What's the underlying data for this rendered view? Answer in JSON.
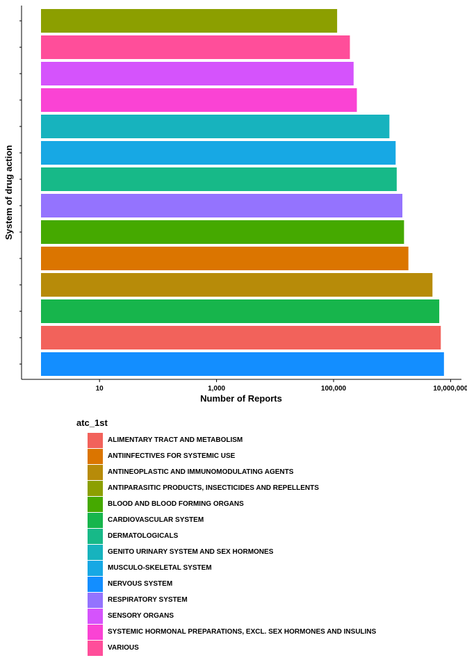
{
  "chart_data": {
    "type": "bar",
    "orientation": "horizontal",
    "xlabel": "Number of Reports",
    "ylabel": "System of drug action",
    "x_scale": "log10",
    "x_ticks": [
      10,
      1000,
      100000,
      10000000
    ],
    "x_tick_labels": [
      "10",
      "1,000",
      "100,000",
      "10,000,000"
    ],
    "xlim": [
      1,
      10000000
    ],
    "grid": false,
    "legend_title": "atc_1st",
    "legend_position": "bottom",
    "categories": [
      "ANTIPARASITIC PRODUCTS, INSECTICIDES AND REPELLENTS",
      "VARIOUS",
      "SENSORY ORGANS",
      "SYSTEMIC HORMONAL PREPARATIONS, EXCL. SEX HORMONES AND INSULINS",
      "GENITO URINARY SYSTEM AND SEX HORMONES",
      "MUSCULO-SKELETAL SYSTEM",
      "DERMATOLOGICALS",
      "RESPIRATORY SYSTEM",
      "BLOOD AND BLOOD FORMING ORGANS",
      "ANTIINFECTIVES FOR SYSTEMIC USE",
      "ANTINEOPLASTIC AND IMMUNOMODULATING AGENTS",
      "CARDIOVASCULAR SYSTEM",
      "ALIMENTARY TRACT AND METABOLISM",
      "NERVOUS SYSTEM"
    ],
    "values": [
      115000,
      190000,
      220000,
      250000,
      900000,
      1150000,
      1200000,
      1500000,
      1600000,
      1900000,
      4900000,
      6400000,
      6800000,
      7700000
    ],
    "colors": [
      "#8C9F00",
      "#FF4E9A",
      "#D553FC",
      "#FA43D4",
      "#17B3BE",
      "#17A8E4",
      "#17B988",
      "#9473FE",
      "#45A900",
      "#DB7500",
      "#B78B09",
      "#17B54C",
      "#F2625B",
      "#138EFF"
    ],
    "legend": [
      {
        "label": "ALIMENTARY TRACT AND METABOLISM",
        "color": "#F2625B"
      },
      {
        "label": "ANTIINFECTIVES FOR SYSTEMIC USE",
        "color": "#DB7500"
      },
      {
        "label": "ANTINEOPLASTIC AND IMMUNOMODULATING AGENTS",
        "color": "#B78B09"
      },
      {
        "label": "ANTIPARASITIC PRODUCTS, INSECTICIDES AND REPELLENTS",
        "color": "#8C9F00"
      },
      {
        "label": "BLOOD AND BLOOD FORMING ORGANS",
        "color": "#45A900"
      },
      {
        "label": "CARDIOVASCULAR SYSTEM",
        "color": "#17B54C"
      },
      {
        "label": "DERMATOLOGICALS",
        "color": "#17B988"
      },
      {
        "label": "GENITO URINARY SYSTEM AND SEX HORMONES",
        "color": "#17B3BE"
      },
      {
        "label": "MUSCULO-SKELETAL SYSTEM",
        "color": "#17A8E4"
      },
      {
        "label": "NERVOUS SYSTEM",
        "color": "#138EFF"
      },
      {
        "label": "RESPIRATORY SYSTEM",
        "color": "#9473FE"
      },
      {
        "label": "SENSORY ORGANS",
        "color": "#D553FC"
      },
      {
        "label": "SYSTEMIC HORMONAL PREPARATIONS, EXCL. SEX HORMONES AND INSULINS",
        "color": "#FA43D4"
      },
      {
        "label": "VARIOUS",
        "color": "#FF4E9A"
      }
    ]
  }
}
